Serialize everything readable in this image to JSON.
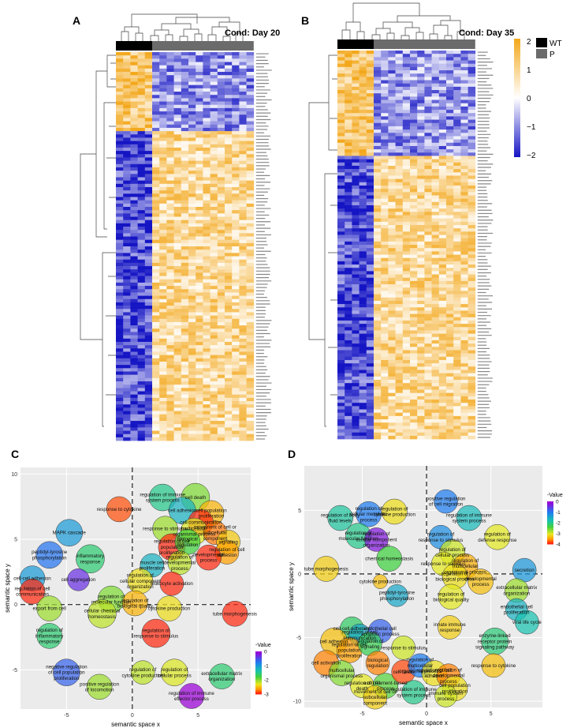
{
  "panels": {
    "a": {
      "letter": "A",
      "condition": "Cond: Day 20"
    },
    "b": {
      "letter": "B",
      "condition": "Cond: Day 35"
    },
    "c": {
      "letter": "C"
    },
    "d": {
      "letter": "D"
    }
  },
  "heatmap_legend": {
    "ticks": [
      "2",
      "1",
      "0",
      "−1",
      "−2"
    ],
    "groups": [
      {
        "label": "WT",
        "color": "#000000"
      },
      {
        "label": "P",
        "color": "#6b6b6b"
      }
    ],
    "colors": {
      "high": "#f3a81c",
      "mid": "#ffffff",
      "low": "#1515c4"
    }
  },
  "scatter_axis": {
    "xlabel": "semantic space x",
    "ylabel": "semantic space y"
  },
  "chart_data": [
    {
      "panel": "C",
      "type": "scatter",
      "xlabel": "semantic space x",
      "ylabel": "semantic space y",
      "xlim": [
        -8.5,
        9
      ],
      "ylim": [
        -8,
        10.5
      ],
      "xticks": [
        -5,
        0,
        5
      ],
      "yticks": [
        -5,
        0,
        5,
        10
      ],
      "legend": {
        "title": "-Value",
        "ticks": [
          0,
          -1,
          -2,
          -3
        ],
        "placement": "right"
      },
      "points": [
        {
          "label": "regulation of immune system process",
          "x": 2.3,
          "y": 8.2,
          "r": 17,
          "v": -1.5
        },
        {
          "label": "cell death",
          "x": 4.8,
          "y": 8.2,
          "r": 18,
          "v": -2.0
        },
        {
          "label": "cell adhesion",
          "x": 3.8,
          "y": 7.2,
          "r": 17,
          "v": -1.2
        },
        {
          "label": "cell population proliferation",
          "x": 6.0,
          "y": 7.0,
          "r": 16,
          "v": -2.6
        },
        {
          "label": "cell communication",
          "x": 5.2,
          "y": 6.3,
          "r": 16,
          "v": -3.4
        },
        {
          "label": "multicellular organismal process",
          "x": 4.7,
          "y": 5.6,
          "r": 17,
          "v": -2.3
        },
        {
          "label": "movement of cell or subcellular component",
          "x": 6.3,
          "y": 5.5,
          "r": 15,
          "v": -2.8
        },
        {
          "label": "signaling",
          "x": 7.3,
          "y": 4.8,
          "r": 15,
          "v": -2.5
        },
        {
          "label": "regulation of cell adhesion",
          "x": 7.2,
          "y": 4.0,
          "r": 15,
          "v": -2.7
        },
        {
          "label": "response to stimulus",
          "x": 2.5,
          "y": 5.8,
          "r": 16,
          "v": -2.1
        },
        {
          "label": "regulation of cell population proliferation",
          "x": 3.0,
          "y": 4.4,
          "r": 17,
          "v": -3.1
        },
        {
          "label": "developmental process",
          "x": 5.8,
          "y": 3.6,
          "r": 16,
          "v": -3.0
        },
        {
          "label": "biological regulation",
          "x": 4.2,
          "y": 4.8,
          "r": 16,
          "v": -1.8
        },
        {
          "label": "regulation of developmental process",
          "x": 3.6,
          "y": 3.2,
          "r": 15,
          "v": -2.2
        },
        {
          "label": "response to cytokine",
          "x": -1.0,
          "y": 7.3,
          "r": 16,
          "v": -2.9
        },
        {
          "label": "MAPK cascade",
          "x": -4.8,
          "y": 5.5,
          "r": 17,
          "v": -1.0
        },
        {
          "label": "peptidyl-tyrosine phosphorylation",
          "x": -6.3,
          "y": 3.8,
          "r": 17,
          "v": -0.7
        },
        {
          "label": "inflammatory response",
          "x": -3.2,
          "y": 3.5,
          "r": 18,
          "v": -1.6
        },
        {
          "label": "cell-cell adhesion",
          "x": -7.6,
          "y": 2.0,
          "r": 16,
          "v": -1.0
        },
        {
          "label": "cell aggregation",
          "x": -4.1,
          "y": 1.9,
          "r": 14,
          "v": -0.3
        },
        {
          "label": "regulation of cell communication",
          "x": -7.6,
          "y": 1.0,
          "r": 16,
          "v": -3.5
        },
        {
          "label": "export from cell",
          "x": -6.3,
          "y": -0.3,
          "r": 16,
          "v": -2.1
        },
        {
          "label": "muscle cell proliferation",
          "x": 1.5,
          "y": 3.0,
          "r": 15,
          "v": -1.2
        },
        {
          "label": "regulation of cellular component organization",
          "x": 0.6,
          "y": 1.8,
          "r": 16,
          "v": -2.4
        },
        {
          "label": "leukocyte activation",
          "x": 3.0,
          "y": 1.6,
          "r": 15,
          "v": -3.0
        },
        {
          "label": "regulation of molecular function",
          "x": -1.6,
          "y": 0.4,
          "r": 17,
          "v": -2.0
        },
        {
          "label": "regulation of biological quality",
          "x": 0.2,
          "y": 0.1,
          "r": 16,
          "v": -2.6
        },
        {
          "label": "cytokine production",
          "x": 2.8,
          "y": -0.3,
          "r": 16,
          "v": -2.4
        },
        {
          "label": "cellular chemical homeostasis",
          "x": -2.3,
          "y": -0.7,
          "r": 18,
          "v": -2.2
        },
        {
          "label": "tube morphogenesis",
          "x": 7.8,
          "y": -0.7,
          "r": 16,
          "v": -3.2
        },
        {
          "label": "regulation of inflammatory response",
          "x": -6.3,
          "y": -2.4,
          "r": 16,
          "v": -1.6
        },
        {
          "label": "regulation of response to stimulus",
          "x": 1.8,
          "y": -2.2,
          "r": 18,
          "v": -3.6
        },
        {
          "label": "regulation of cytokine production",
          "x": 0.8,
          "y": -5.2,
          "r": 15,
          "v": -2.2
        },
        {
          "label": "regulation of cellular process",
          "x": 3.2,
          "y": -5.2,
          "r": 17,
          "v": -2.3
        },
        {
          "label": "extracellular matrix organization",
          "x": 6.8,
          "y": -5.5,
          "r": 16,
          "v": -1.6
        },
        {
          "label": "negative regulation of cell population proliferation",
          "x": -5.0,
          "y": -5.2,
          "r": 17,
          "v": -0.6
        },
        {
          "label": "positive regulation of locomotion",
          "x": -2.5,
          "y": -6.3,
          "r": 16,
          "v": -2.1
        },
        {
          "label": "regulation of immune effector process",
          "x": 4.5,
          "y": -7.0,
          "r": 16,
          "v": 0.0
        }
      ]
    },
    {
      "panel": "D",
      "type": "scatter",
      "xlabel": "semantic space x",
      "ylabel": "semantic space y",
      "xlim": [
        -9.5,
        9
      ],
      "ylim": [
        -10.5,
        8.5
      ],
      "xticks": [
        -5,
        0,
        5
      ],
      "yticks": [
        -10,
        -5,
        0,
        5
      ],
      "legend": {
        "title": "-Value",
        "ticks": [
          0,
          -1,
          -2,
          -3,
          -4
        ],
        "placement": "right"
      },
      "points": [
        {
          "label": "positive regulation of cell migration",
          "x": 1.5,
          "y": 5.7,
          "r": 15,
          "v": -1.0
        },
        {
          "label": "regulation of immune system process",
          "x": 3.3,
          "y": 4.4,
          "r": 16,
          "v": -1.7
        },
        {
          "label": "regulation of body fluid levels",
          "x": -6.7,
          "y": 4.4,
          "r": 16,
          "v": -1.9
        },
        {
          "label": "regulation of cellular metabolic process",
          "x": -4.5,
          "y": 4.7,
          "r": 16,
          "v": -1.0
        },
        {
          "label": "regulation of cytokine production",
          "x": -2.5,
          "y": 4.9,
          "r": 16,
          "v": -3.2
        },
        {
          "label": "regulation of molecular function",
          "x": -5.3,
          "y": 3.0,
          "r": 16,
          "v": -2.0
        },
        {
          "label": "regulation of cellular component organization",
          "x": -3.9,
          "y": 2.7,
          "r": 15,
          "v": -0.2
        },
        {
          "label": "regulation of response to stimulus",
          "x": 1.1,
          "y": 2.9,
          "r": 15,
          "v": -1.2
        },
        {
          "label": "regulation of defense response",
          "x": 5.5,
          "y": 2.9,
          "r": 16,
          "v": -3.1
        },
        {
          "label": "regulation of cellular process",
          "x": 2.0,
          "y": 1.7,
          "r": 16,
          "v": -3.0
        },
        {
          "label": "chemical homeostasis",
          "x": -2.9,
          "y": 1.2,
          "r": 16,
          "v": -2.4
        },
        {
          "label": "response to stimulus",
          "x": 1.3,
          "y": 0.8,
          "r": 15,
          "v": -3.1
        },
        {
          "label": "regulation of multicellular organismal process",
          "x": 3.0,
          "y": 0.6,
          "r": 16,
          "v": -3.5
        },
        {
          "label": "regulation of biological process",
          "x": 2.2,
          "y": -0.2,
          "r": 16,
          "v": -3.2
        },
        {
          "label": "developmental process",
          "x": 4.2,
          "y": -0.6,
          "r": 16,
          "v": -3.4
        },
        {
          "label": "tube morphogenesis",
          "x": -7.8,
          "y": 0.4,
          "r": 16,
          "v": -3.3
        },
        {
          "label": "secretion",
          "x": 7.6,
          "y": 0.3,
          "r": 15,
          "v": -1.3
        },
        {
          "label": "cytokine production",
          "x": -3.6,
          "y": -0.6,
          "r": 9,
          "v": -3.4
        },
        {
          "label": "peptidyl-tyrosine phosphorylation",
          "x": -2.3,
          "y": -1.7,
          "r": 14,
          "v": -1.5
        },
        {
          "label": "regulation of biological quality",
          "x": 1.9,
          "y": -1.8,
          "r": 16,
          "v": -3.1
        },
        {
          "label": "extracellular matrix organization",
          "x": 7.0,
          "y": -1.3,
          "r": 15,
          "v": -2.8
        },
        {
          "label": "endothelial cell proliferation",
          "x": 7.0,
          "y": -2.8,
          "r": 14,
          "v": -1.6
        },
        {
          "label": "viral life cycle",
          "x": 7.8,
          "y": -3.8,
          "r": 15,
          "v": -1.8
        },
        {
          "label": "innate immune response",
          "x": 1.8,
          "y": -4.2,
          "r": 15,
          "v": -3.3
        },
        {
          "label": "enzyme-linked receptor protein signaling pathway",
          "x": 5.3,
          "y": -5.3,
          "r": 17,
          "v": -2.1
        },
        {
          "label": "response to cytokine",
          "x": 5.2,
          "y": -7.2,
          "r": 15,
          "v": -3.4
        },
        {
          "label": "cell-cell adhesion",
          "x": -5.8,
          "y": -4.3,
          "r": 15,
          "v": -2.2
        },
        {
          "label": "regulation of cell communication",
          "x": -5.2,
          "y": -4.8,
          "r": 14,
          "v": -1.5
        },
        {
          "label": "endothelial cell apoptotic process",
          "x": -3.6,
          "y": -4.5,
          "r": 15,
          "v": -0.8
        },
        {
          "label": "cell adhesion",
          "x": -7.2,
          "y": -5.3,
          "r": 17,
          "v": -3.4
        },
        {
          "label": "regulation of cell population proliferation",
          "x": -6.0,
          "y": -6.0,
          "r": 16,
          "v": -3.6
        },
        {
          "label": "regulation of signaling",
          "x": -4.4,
          "y": -5.5,
          "r": 15,
          "v": -2.3
        },
        {
          "label": "response to stimulus",
          "x": -1.8,
          "y": -5.8,
          "r": 15,
          "v": -3.0
        },
        {
          "label": "cell activation",
          "x": -7.8,
          "y": -7.0,
          "r": 16,
          "v": -3.7
        },
        {
          "label": "multicellular organismal process",
          "x": -6.6,
          "y": -7.8,
          "r": 16,
          "v": -2.7
        },
        {
          "label": "biological regulation",
          "x": -3.8,
          "y": -7.0,
          "r": 15,
          "v": -3.7
        },
        {
          "label": "regulation of cell death",
          "x": -5.0,
          "y": -8.8,
          "r": 15,
          "v": -3.1
        },
        {
          "label": "actin filament-based process",
          "x": -3.2,
          "y": -8.8,
          "r": 16,
          "v": -2.5
        },
        {
          "label": "cell death",
          "x": -1.8,
          "y": -7.7,
          "r": 15,
          "v": -3.9
        },
        {
          "label": "movement of cell or subcellular component",
          "x": -4.0,
          "y": -9.7,
          "r": 15,
          "v": -3.3
        },
        {
          "label": "regulation of immune system process",
          "x": -1.0,
          "y": -9.3,
          "r": 15,
          "v": -2.0
        },
        {
          "label": "regulation of multicellular organismal process",
          "x": -0.5,
          "y": -7.2,
          "r": 15,
          "v": -1.0
        },
        {
          "label": "regulation of cell adhesion",
          "x": 0.6,
          "y": -7.8,
          "r": 16,
          "v": -3.2
        },
        {
          "label": "regulation of developmental process",
          "x": 1.7,
          "y": -8.0,
          "r": 15,
          "v": -3.7
        },
        {
          "label": "cell population proliferation",
          "x": 2.2,
          "y": -9.0,
          "r": 16,
          "v": -3.2
        },
        {
          "label": "immune system process",
          "x": 1.5,
          "y": -9.6,
          "r": 14,
          "v": -3.0
        }
      ]
    }
  ]
}
